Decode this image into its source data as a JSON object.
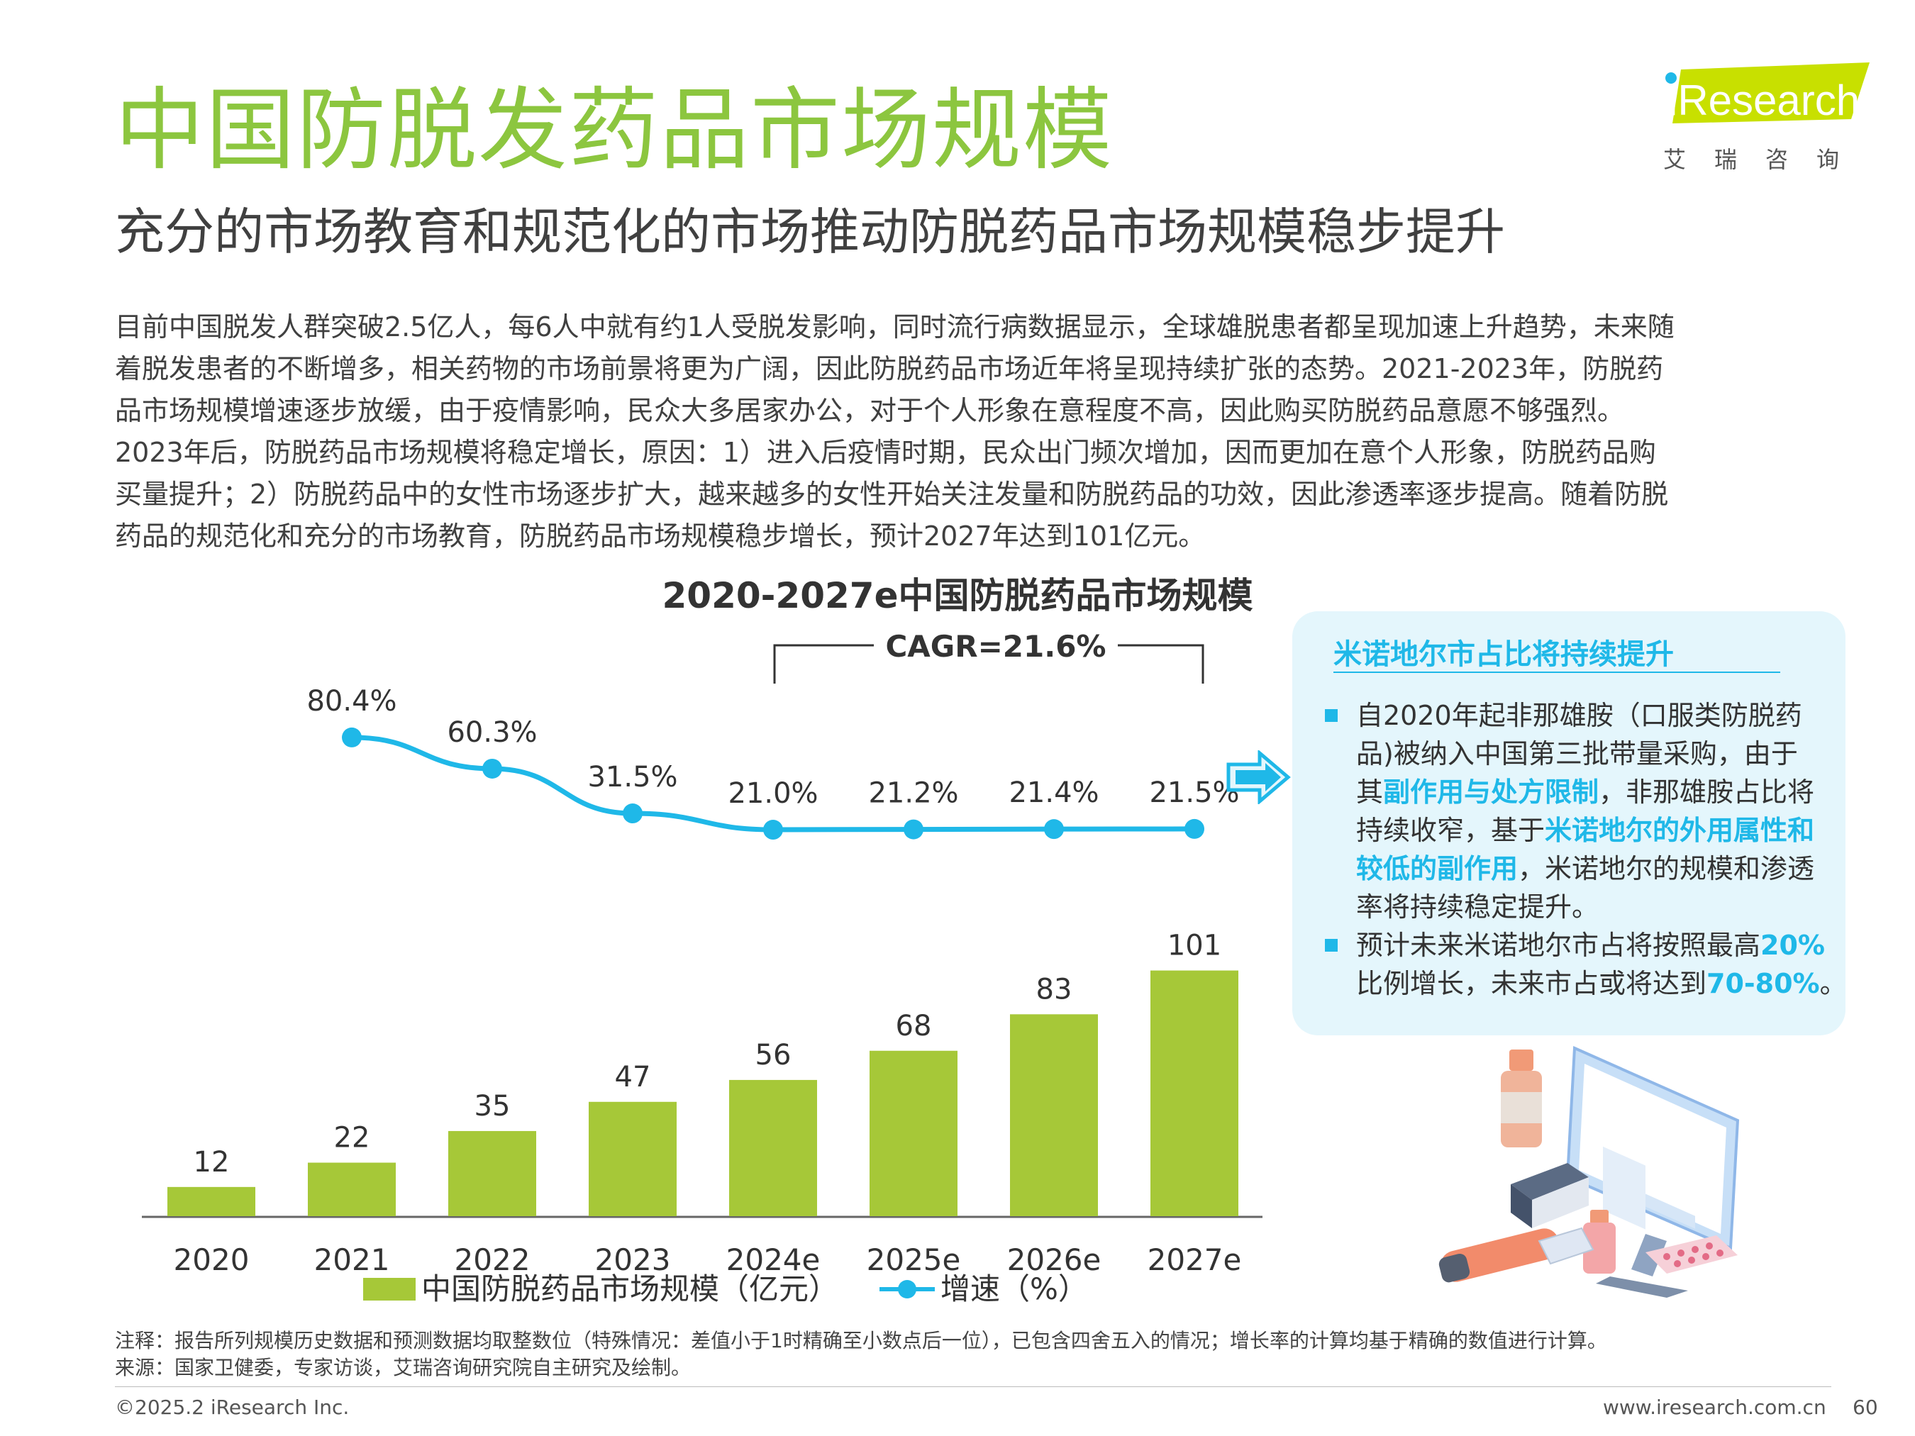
{
  "header": {
    "title": "中国防脱发药品市场规模",
    "subtitle": "充分的市场教育和规范化的市场推动防脱药品市场规模稳步提升",
    "logo_text": "iResearch",
    "logo_subtext": "艾瑞咨询"
  },
  "body_lines": [
    "目前中国脱发人群突破2.5亿人，每6人中就有约1人受脱发影响，同时流行病数据显示，全球雄脱患者都呈现加速上升趋势，未来随",
    "着脱发患者的不断增多，相关药物的市场前景将更为广阔，因此防脱药品市场近年将呈现持续扩张的态势。2021-2023年，防脱药",
    "品市场规模增速逐步放缓，由于疫情影响，民众大多居家办公，对于个人形象在意程度不高，因此购买防脱药品意愿不够强烈。",
    "2023年后，防脱药品市场规模将稳定增长，原因：1）进入后疫情时期，民众出门频次增加，因而更加在意个人形象，防脱药品购",
    "买量提升；2）防脱药品中的女性市场逐步扩大，越来越多的女性开始关注发量和防脱药品的功效，因此渗透率逐步提高。随着防脱",
    "药品的规范化和充分的市场教育，防脱药品市场规模稳步增长，预计2027年达到101亿元。"
  ],
  "chart_data": {
    "type": "bar",
    "title": "2020-2027e中国防脱药品市场规模",
    "categories": [
      "2020",
      "2021",
      "2022",
      "2023",
      "2024e",
      "2025e",
      "2026e",
      "2027e"
    ],
    "series": [
      {
        "name": "中国防脱药品市场规模（亿元）",
        "type": "bar",
        "values": [
          12,
          22,
          35,
          47,
          56,
          68,
          83,
          101
        ],
        "labels": [
          "12",
          "22",
          "35",
          "47",
          "56",
          "68",
          "83",
          "101"
        ]
      },
      {
        "name": "增速（%）",
        "type": "line",
        "values": [
          null,
          80.4,
          60.3,
          31.5,
          21.0,
          21.2,
          21.4,
          21.5
        ],
        "labels": [
          "",
          "80.4%",
          "60.3%",
          "31.5%",
          "21.0%",
          "21.2%",
          "21.4%",
          "21.5%"
        ]
      }
    ],
    "annotation": "CAGR=21.6%",
    "cagr_span": [
      "2024e",
      "2027e"
    ],
    "legend_position": "bottom",
    "colors": {
      "bar": "#a6c838",
      "line": "#1fb8e8"
    }
  },
  "side_panel": {
    "heading": "米诺地尔市占比将持续提升",
    "bullet1": [
      [
        {
          "t": "自2020年起非那雄胺（口服类防脱药"
        }
      ],
      [
        {
          "t": "品)被纳入中国第三批带量采购，由于"
        }
      ],
      [
        {
          "t": "其"
        },
        {
          "t": "副作用与处方限制",
          "hl": true
        },
        {
          "t": "，非那雄胺占比将"
        }
      ],
      [
        {
          "t": "持续收窄，基于"
        },
        {
          "t": "米诺地尔的外用属性和",
          "hl": true
        }
      ],
      [
        {
          "t": "较低的副作用",
          "hl": true
        },
        {
          "t": "，米诺地尔的规模和渗透"
        }
      ],
      [
        {
          "t": "率将持续稳定提升。"
        }
      ]
    ],
    "bullet2": [
      [
        {
          "t": "预计未来米诺地尔市占将按照最高"
        },
        {
          "t": "20%",
          "hl": true
        }
      ],
      [
        {
          "t": "比例增长，未来市占或将达到"
        },
        {
          "t": "70-80%",
          "hl": true
        },
        {
          "t": "。"
        }
      ]
    ]
  },
  "notes": {
    "note": "注释：报告所列规模历史数据和预测数据均取整数位（特殊情况：差值小于1时精确至小数点后一位），已包含四舍五入的情况；增长率的计算均基于精确的数值进行计算。",
    "source": "来源：国家卫健委，专家访谈，艾瑞咨询研究院自主研究及绘制。"
  },
  "footer": {
    "copyright": "©2025.2 iResearch Inc.",
    "website": "www.iresearch.com.cn",
    "page_number": "60"
  }
}
